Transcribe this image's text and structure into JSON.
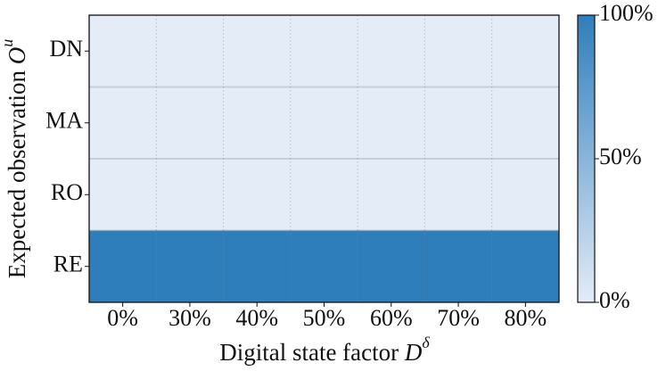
{
  "chart_data": {
    "type": "heatmap",
    "x_categories": [
      "0%",
      "30%",
      "40%",
      "50%",
      "60%",
      "70%",
      "80%"
    ],
    "y_categories": [
      "DN",
      "MA",
      "RO",
      "RE"
    ],
    "values": [
      [
        0,
        0,
        0,
        0,
        0,
        0,
        0
      ],
      [
        0,
        0,
        0,
        0,
        0,
        0,
        0
      ],
      [
        0,
        0,
        0,
        0,
        0,
        0,
        0
      ],
      [
        100,
        100,
        100,
        100,
        100,
        100,
        100
      ]
    ],
    "xlabel": {
      "text": "Digital state factor ",
      "var": "D",
      "sup": "δ"
    },
    "ylabel": {
      "text": "Expected observation ",
      "var": "O",
      "sup": "u"
    },
    "colormap": [
      "#e3ecf7",
      "#2e7ebc"
    ],
    "clim": [
      0,
      100
    ],
    "cticks": [
      {
        "value": 0,
        "label": "0%"
      },
      {
        "value": 50,
        "label": "50%"
      },
      {
        "value": 100,
        "label": "100%"
      }
    ],
    "grid": true
  }
}
